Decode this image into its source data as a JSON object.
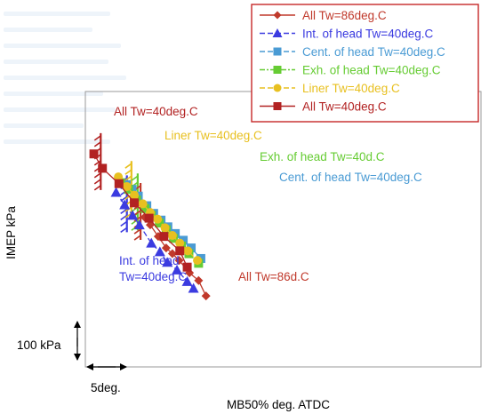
{
  "chart_data": {
    "type": "line",
    "xlabel": "MB50% deg. ATDC",
    "ylabel": "IMEP kPa",
    "scale_y": "100 kPa",
    "scale_x": "5deg.",
    "grid": false,
    "legend_position": "top-right",
    "units_note": "x values are in deg. (MB50% ATDC) relative to the left plot edge; y values are in kPa relative to the bottom plot edge",
    "series": [
      {
        "name": "All Tw=86deg.C",
        "color": "#c0392b",
        "marker": "diamond",
        "x": [
          10.4,
          11.4,
          12.8,
          14.2,
          15.3,
          16.5,
          18.3,
          19.9,
          21.2
        ],
        "y": [
          156,
          148,
          136,
          124,
          118,
          111,
          98,
          90,
          74
        ]
      },
      {
        "name": "Int. of head Tw=40deg.C",
        "color": "#3b3be0",
        "marker": "triangle",
        "x": [
          5.4,
          6.9,
          8.3,
          9.5,
          11.6,
          13.1,
          14.4,
          16.1,
          17.9,
          19.0
        ],
        "y": [
          182,
          169,
          158,
          148,
          129,
          120,
          109,
          101,
          89,
          82
        ]
      },
      {
        "name": "Cent. of head Tw=40deg.C",
        "color": "#4a9bd4",
        "marker": "square",
        "x": [
          7.2,
          8.2,
          9.3,
          10.8,
          12.0,
          13.3,
          14.5,
          15.8,
          17.2,
          18.6,
          20.3
        ],
        "y": [
          190,
          185,
          178,
          168,
          160,
          153,
          146,
          139,
          132,
          124,
          113
        ]
      },
      {
        "name": "Exh. of head Tw=40deg.C",
        "color": "#66cc33",
        "marker": "square",
        "x": [
          6.2,
          7.6,
          9.0,
          10.5,
          11.6,
          13.0,
          14.2,
          15.5,
          16.9,
          18.2,
          19.9
        ],
        "y": [
          192,
          185,
          174,
          165,
          158,
          150,
          143,
          134,
          126,
          118,
          108
        ]
      },
      {
        "name": "Liner Tw=40deg.C",
        "color": "#e8c020",
        "marker": "circle",
        "x": [
          5.8,
          7.3,
          8.6,
          10.1,
          11.4,
          12.7,
          14.0,
          15.3,
          16.6,
          18.0,
          19.7
        ],
        "y": [
          198,
          188,
          179,
          170,
          161,
          154,
          145,
          137,
          129,
          121,
          111
        ]
      },
      {
        "name": "All Tw=40deg.C",
        "color": "#b22222",
        "marker": "square",
        "x": [
          1.5,
          3.0,
          5.9,
          8.6,
          11.2,
          13.8,
          16.6,
          17.9
        ],
        "y": [
          222,
          207,
          191,
          171,
          155,
          136,
          121,
          104
        ]
      }
    ],
    "annotations": [
      {
        "text": "All Tw=40deg.C",
        "color": "#b22222"
      },
      {
        "text": "Liner Tw=40deg.C",
        "color": "#e8c020"
      },
      {
        "text": "Exh. of head Tw=40d.C",
        "color": "#66cc33"
      },
      {
        "text": "Cent. of head Tw=40deg.C",
        "color": "#4a9bd4"
      },
      {
        "text": "Int. of head",
        "color": "#3b3be0"
      },
      {
        "text": "Tw=40deg.C",
        "color": "#3b3be0"
      },
      {
        "text": "All Tw=86d.C",
        "color": "#c0392b"
      }
    ],
    "limit_lines": [
      {
        "series": "All Tw=40deg.C",
        "x": 2.7,
        "y": 214,
        "color": "#b22222"
      },
      {
        "series": "Int. of head Tw=40deg.C",
        "x": 7.3,
        "y": 170,
        "color": "#3b3be0"
      },
      {
        "series": "Liner Tw=40deg.C",
        "x": 8.1,
        "y": 185,
        "color": "#e8c020"
      },
      {
        "series": "Exh. of head Tw=40deg.C",
        "x": 9.2,
        "y": 172,
        "color": "#66cc33"
      },
      {
        "series": "All Tw=86deg.C",
        "x": 9.7,
        "y": 162,
        "color": "#c0392b"
      }
    ]
  }
}
